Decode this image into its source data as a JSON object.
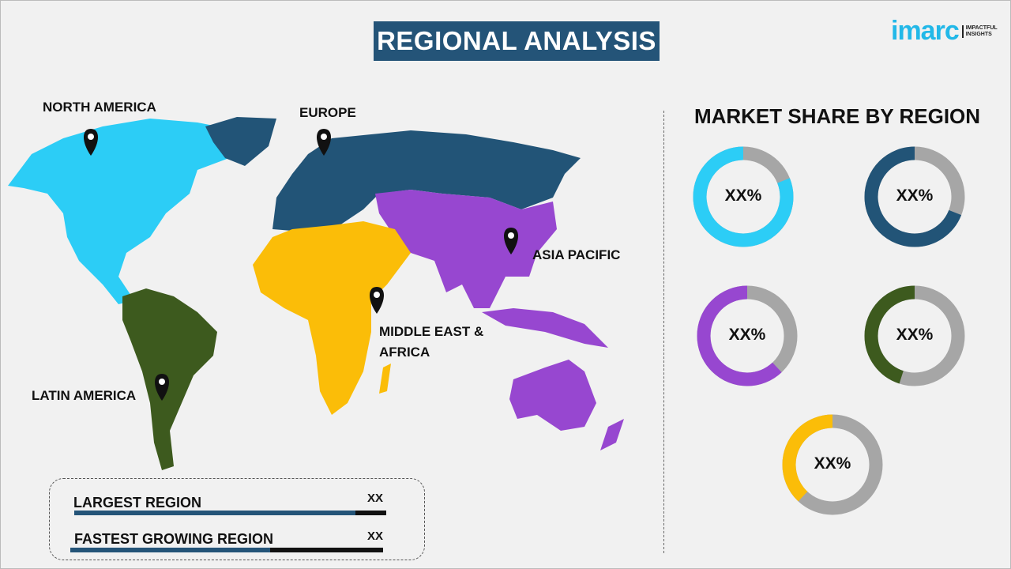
{
  "title": "REGIONAL ANALYSIS",
  "logo": {
    "word": "imarc",
    "tagline_1": "IMPACTFUL",
    "tagline_2": "INSIGHTS"
  },
  "map": {
    "regions": [
      {
        "name": "NORTH AMERICA",
        "color": "#2ccdf6"
      },
      {
        "name": "EUROPE",
        "color": "#225477"
      },
      {
        "name": "ASIA PACIFIC",
        "color": "#9747d0"
      },
      {
        "name": "MIDDLE EAST &",
        "name_line2": "AFRICA",
        "color": "#fbbd08"
      },
      {
        "name": "LATIN AMERICA",
        "color": "#3d5a1e"
      }
    ],
    "marker_icon": "map-pin-icon"
  },
  "market_share": {
    "title": "MARKET SHARE BY REGION",
    "track_color": "#a6a6a6",
    "donuts": [
      {
        "region": "NORTH AMERICA",
        "label": "XX%",
        "color": "#2ccdf6",
        "fill_percent": 81
      },
      {
        "region": "EUROPE",
        "label": "XX%",
        "color": "#225477",
        "fill_percent": 69
      },
      {
        "region": "ASIA PACIFIC",
        "label": "XX%",
        "color": "#9747d0",
        "fill_percent": 62
      },
      {
        "region": "LATIN AMERICA",
        "label": "XX%",
        "color": "#3d5a1e",
        "fill_percent": 45
      },
      {
        "region": "MIDDLE EAST & AFRICA",
        "label": "XX%",
        "color": "#fbbd08",
        "fill_percent": 38
      }
    ]
  },
  "summary": {
    "rows": [
      {
        "label": "LARGEST REGION",
        "value": "XX",
        "fill_percent": 90
      },
      {
        "label": "FASTEST GROWING REGION",
        "value": "XX",
        "fill_percent": 64
      }
    ]
  }
}
